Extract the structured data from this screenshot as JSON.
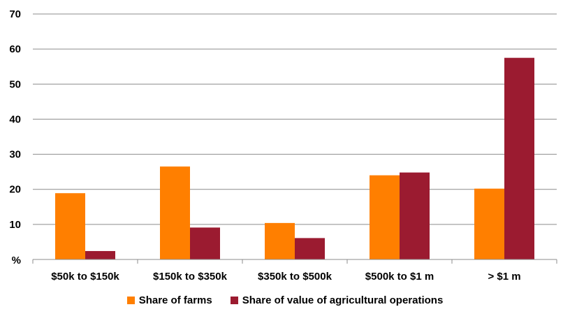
{
  "chart_data": {
    "type": "bar",
    "categories": [
      "$50k to $150k",
      "$150k to $350k",
      "$350k to $500k",
      "$500k to $1 m",
      "> $1 m"
    ],
    "series": [
      {
        "name": "Share of farms",
        "color": "#ff7f00",
        "values": [
          18.9,
          26.5,
          10.4,
          24.0,
          20.2
        ]
      },
      {
        "name": "Share of value of agricultural operations",
        "color": "#9b1b30",
        "values": [
          2.4,
          9.1,
          6.1,
          24.8,
          57.5
        ]
      }
    ],
    "ylim": [
      0,
      70
    ],
    "yticks": [
      10,
      20,
      30,
      40,
      50,
      60,
      70
    ],
    "ylabel": "%",
    "grid": true,
    "legend_position": "bottom"
  }
}
